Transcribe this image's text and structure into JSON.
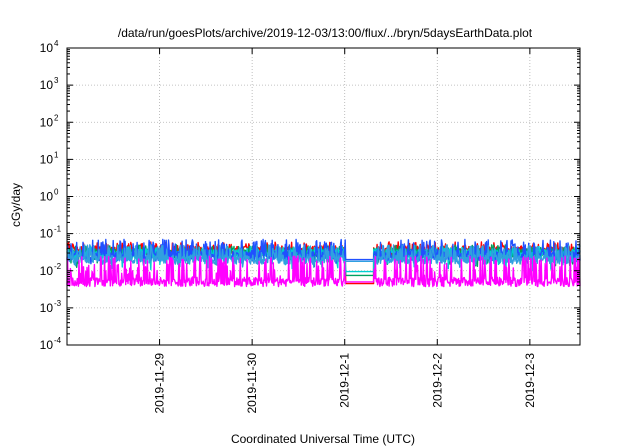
{
  "chart_data": {
    "type": "line",
    "title": "/data/run/goesPlots/archive/2019-12-03/13:00/flux/../bryn/5daysEarthData.plot",
    "xlabel": "Coordinated Universal Time (UTC)",
    "ylabel": "cGy/day",
    "yscale": "log",
    "ylim": [
      0.0001,
      10000
    ],
    "y_ticks": [
      {
        "base": "10",
        "exp": "-4"
      },
      {
        "base": "10",
        "exp": "-3"
      },
      {
        "base": "10",
        "exp": "-2"
      },
      {
        "base": "10",
        "exp": "-1"
      },
      {
        "base": "10",
        "exp": "0"
      },
      {
        "base": "10",
        "exp": "1"
      },
      {
        "base": "10",
        "exp": "2"
      },
      {
        "base": "10",
        "exp": "3"
      },
      {
        "base": "10",
        "exp": "4"
      }
    ],
    "xlim": [
      "2019-11-28 00:00",
      "2019-12-03 13:00"
    ],
    "x_ticks": [
      "2019-11-29",
      "2019-11-30",
      "2019-12-1",
      "2019-12-2",
      "2019-12-3"
    ],
    "x_tick_dates": [
      "2019-11-29",
      "2019-11-30",
      "2019-12-01",
      "2019-12-02",
      "2019-12-03"
    ],
    "grid": true,
    "data_gap": [
      "2019-12-01 00:15",
      "2019-12-01 07:30"
    ],
    "series": [
      {
        "color": "#ff0000",
        "baseline": 0.035,
        "low": 0.022,
        "high": 0.06,
        "gap_value": 0.0045
      },
      {
        "color": "#00a060",
        "baseline": 0.03,
        "low": 0.012,
        "high": 0.05,
        "gap_value": 0.0075
      },
      {
        "color": "#00d0d0",
        "baseline": 0.028,
        "low": 0.01,
        "high": 0.045,
        "gap_value": 0.0095
      },
      {
        "color": "#2050ff",
        "baseline": 0.025,
        "low": 0.015,
        "high": 0.07,
        "gap_value": 0.02
      },
      {
        "color": "#30a0e0",
        "baseline": 0.02,
        "low": 0.012,
        "high": 0.05,
        "gap_value": 0.018
      },
      {
        "color": "#ff00ff",
        "baseline": 0.005,
        "low": 0.0035,
        "high": 0.025,
        "gap_value": 0.005
      }
    ]
  }
}
